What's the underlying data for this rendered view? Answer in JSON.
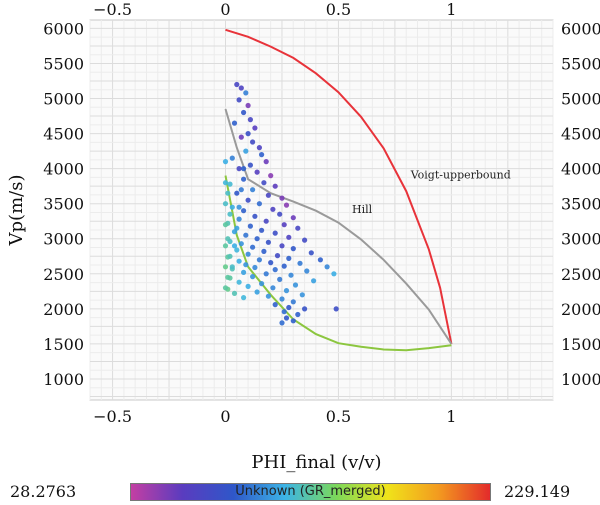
{
  "chart_data": {
    "type": "scatter",
    "xlabel": "PHI_final (v/v)",
    "ylabel": "Vp(m/s)",
    "xlim": [
      -0.6,
      1.45
    ],
    "ylim": [
      700,
      6120
    ],
    "grid": true,
    "x_ticks": [
      {
        "v": -0.5,
        "label": "−0.5"
      },
      {
        "v": 0,
        "label": "0"
      },
      {
        "v": 0.5,
        "label": "0.5"
      },
      {
        "v": 1,
        "label": "1"
      }
    ],
    "x_top_ticks": [
      {
        "v": -0.5,
        "label": "−0.5"
      },
      {
        "v": 0,
        "label": "0"
      },
      {
        "v": 0.5,
        "label": "0.5"
      },
      {
        "v": 1,
        "label": "1"
      }
    ],
    "y_ticks": [
      1000,
      1500,
      2000,
      2500,
      3000,
      3500,
      4000,
      4500,
      5000,
      5500,
      6000
    ],
    "curves": [
      {
        "name": "Voigt-upperbound",
        "label_at": [
          0.82,
          3860
        ],
        "color": "#e8333a",
        "x": [
          0,
          0.1,
          0.2,
          0.3,
          0.4,
          0.5,
          0.6,
          0.7,
          0.8,
          0.9,
          0.95,
          1.0
        ],
        "y": [
          5980,
          5880,
          5740,
          5580,
          5360,
          5090,
          4740,
          4290,
          3680,
          2850,
          2300,
          1500
        ]
      },
      {
        "name": "Hill",
        "label_at": [
          0.56,
          3370
        ],
        "color": "#9a9a9a",
        "x": [
          0,
          0.05,
          0.1,
          0.2,
          0.3,
          0.4,
          0.5,
          0.6,
          0.7,
          0.8,
          0.9,
          1.0
        ],
        "y": [
          4850,
          4300,
          3850,
          3650,
          3530,
          3400,
          3230,
          2990,
          2700,
          2360,
          1990,
          1500
        ]
      },
      {
        "name": "",
        "color": "#8cc63f",
        "x": [
          0,
          0.05,
          0.1,
          0.2,
          0.3,
          0.4,
          0.5,
          0.6,
          0.7,
          0.8,
          0.9,
          1.0
        ],
        "y": [
          3900,
          3050,
          2600,
          2200,
          1850,
          1640,
          1510,
          1460,
          1420,
          1410,
          1440,
          1480
        ]
      }
    ],
    "color_scale": {
      "label": "Unknown (GR_merged)",
      "min": "28.2763",
      "max": "229.149",
      "stops": [
        "#c33fa3",
        "#5a3cbf",
        "#2f57c9",
        "#3cb4e6",
        "#7bd85a",
        "#f0e31a",
        "#f39a1f",
        "#e32b2b"
      ]
    },
    "points": [
      [
        0.05,
        5200,
        0.2
      ],
      [
        0.07,
        5150,
        0.18
      ],
      [
        0.09,
        5080,
        0.35
      ],
      [
        0.06,
        4980,
        0.22
      ],
      [
        0.1,
        4900,
        0.1
      ],
      [
        0.08,
        4800,
        0.28
      ],
      [
        0.11,
        4700,
        0.2
      ],
      [
        0.04,
        4650,
        0.3
      ],
      [
        0.13,
        4580,
        0.15
      ],
      [
        0.1,
        4500,
        0.25
      ],
      [
        0.07,
        4450,
        0.12
      ],
      [
        0.12,
        4380,
        0.22
      ],
      [
        0.15,
        4300,
        0.18
      ],
      [
        0.09,
        4250,
        0.4
      ],
      [
        0.16,
        4200,
        0.3
      ],
      [
        0.03,
        4150,
        0.35
      ],
      [
        0.18,
        4100,
        0.12
      ],
      [
        0.11,
        4050,
        0.26
      ],
      [
        0.06,
        4000,
        0.2
      ],
      [
        0.14,
        3950,
        0.16
      ],
      [
        0.2,
        3900,
        0.08
      ],
      [
        0.08,
        3850,
        0.3
      ],
      [
        0.17,
        3800,
        0.22
      ],
      [
        0.02,
        3780,
        0.45
      ],
      [
        0.22,
        3750,
        0.14
      ],
      [
        0.12,
        3700,
        0.35
      ],
      [
        0.05,
        3650,
        0.28
      ],
      [
        0.19,
        3620,
        0.2
      ],
      [
        0.25,
        3580,
        0.1
      ],
      [
        0.1,
        3550,
        0.24
      ],
      [
        0.15,
        3500,
        0.32
      ],
      [
        0.27,
        3480,
        0.08
      ],
      [
        0.03,
        3450,
        0.42
      ],
      [
        0.21,
        3420,
        0.18
      ],
      [
        0.08,
        3400,
        0.3
      ],
      [
        0.24,
        3350,
        0.22
      ],
      [
        0.13,
        3320,
        0.26
      ],
      [
        0.3,
        3300,
        0.12
      ],
      [
        0.06,
        3280,
        0.36
      ],
      [
        0.18,
        3250,
        0.2
      ],
      [
        0.01,
        3220,
        0.48
      ],
      [
        0.26,
        3200,
        0.16
      ],
      [
        0.11,
        3180,
        0.3
      ],
      [
        0.32,
        3150,
        0.2
      ],
      [
        0.16,
        3120,
        0.28
      ],
      [
        0.04,
        3100,
        0.4
      ],
      [
        0.22,
        3080,
        0.24
      ],
      [
        0.09,
        3050,
        0.33
      ],
      [
        0.28,
        3020,
        0.18
      ],
      [
        0.14,
        3000,
        0.3
      ],
      [
        0.35,
        2980,
        0.22
      ],
      [
        0.02,
        2960,
        0.46
      ],
      [
        0.19,
        2950,
        0.26
      ],
      [
        0.07,
        2930,
        0.38
      ],
      [
        0.25,
        2900,
        0.2
      ],
      [
        0.12,
        2880,
        0.32
      ],
      [
        0.3,
        2860,
        0.28
      ],
      [
        0.05,
        2840,
        0.44
      ],
      [
        0.17,
        2820,
        0.3
      ],
      [
        0.38,
        2800,
        0.26
      ],
      [
        0.1,
        2780,
        0.36
      ],
      [
        0.23,
        2760,
        0.22
      ],
      [
        0.01,
        2740,
        0.5
      ],
      [
        0.28,
        2720,
        0.3
      ],
      [
        0.15,
        2700,
        0.34
      ],
      [
        0.42,
        2700,
        0.3
      ],
      [
        0.06,
        2680,
        0.42
      ],
      [
        0.2,
        2660,
        0.28
      ],
      [
        0.33,
        2650,
        0.34
      ],
      [
        0.09,
        2630,
        0.38
      ],
      [
        0.26,
        2610,
        0.3
      ],
      [
        0.45,
        2600,
        0.36
      ],
      [
        0.13,
        2590,
        0.36
      ],
      [
        0.03,
        2570,
        0.48
      ],
      [
        0.22,
        2560,
        0.32
      ],
      [
        0.36,
        2540,
        0.36
      ],
      [
        0.08,
        2520,
        0.4
      ],
      [
        0.18,
        2500,
        0.34
      ],
      [
        0.48,
        2500,
        0.42
      ],
      [
        0.29,
        2480,
        0.36
      ],
      [
        0.12,
        2460,
        0.38
      ],
      [
        0.02,
        2440,
        0.5
      ],
      [
        0.24,
        2420,
        0.34
      ],
      [
        0.39,
        2400,
        0.4
      ],
      [
        0.06,
        2380,
        0.44
      ],
      [
        0.16,
        2360,
        0.38
      ],
      [
        0.31,
        2340,
        0.38
      ],
      [
        0.1,
        2320,
        0.42
      ],
      [
        0.21,
        2300,
        0.36
      ],
      [
        0.01,
        2280,
        0.52
      ],
      [
        0.27,
        2260,
        0.38
      ],
      [
        0.14,
        2240,
        0.4
      ],
      [
        0.04,
        2220,
        0.48
      ],
      [
        0.34,
        2200,
        0.38
      ],
      [
        0.19,
        2180,
        0.38
      ],
      [
        0.08,
        2160,
        0.44
      ],
      [
        0.25,
        2140,
        0.36
      ],
      [
        0.3,
        2100,
        0.34
      ],
      [
        0.22,
        2060,
        0.3
      ],
      [
        0.28,
        2020,
        0.28
      ],
      [
        0.35,
        2000,
        0.26
      ],
      [
        0.49,
        2000,
        0.24
      ],
      [
        0.26,
        1960,
        0.32
      ],
      [
        0.32,
        1920,
        0.3
      ],
      [
        0.27,
        1870,
        0.28
      ],
      [
        0.3,
        1830,
        0.3
      ],
      [
        0.25,
        1800,
        0.32
      ],
      [
        0.0,
        3500,
        0.46
      ],
      [
        0.0,
        3200,
        0.5
      ],
      [
        0.0,
        2900,
        0.5
      ],
      [
        0.0,
        2600,
        0.52
      ],
      [
        0.0,
        2300,
        0.5
      ],
      [
        0.0,
        3800,
        0.44
      ],
      [
        0.0,
        4100,
        0.42
      ],
      [
        0.01,
        3650,
        0.46
      ],
      [
        0.02,
        3350,
        0.46
      ],
      [
        0.01,
        3000,
        0.48
      ],
      [
        0.02,
        2750,
        0.48
      ],
      [
        0.01,
        2450,
        0.5
      ],
      [
        0.03,
        2600,
        0.46
      ],
      [
        0.04,
        2900,
        0.42
      ],
      [
        0.05,
        3150,
        0.4
      ],
      [
        0.06,
        3450,
        0.38
      ],
      [
        0.07,
        3700,
        0.34
      ],
      [
        0.08,
        4000,
        0.3
      ]
    ]
  }
}
